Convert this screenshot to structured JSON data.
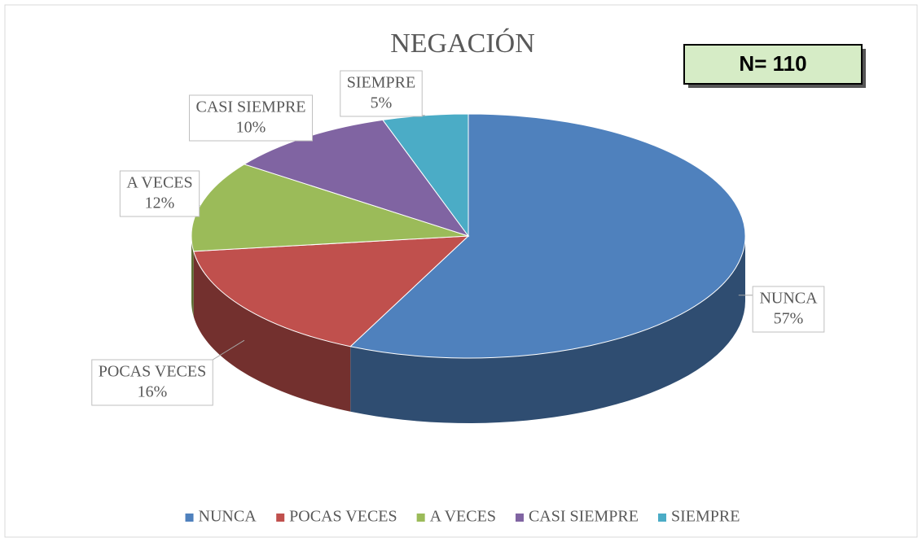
{
  "chart_data": {
    "type": "pie",
    "title": "NEGACIÓN",
    "annotation": "N= 110",
    "categories": [
      "NUNCA",
      "POCAS VECES",
      "A VECES",
      "CASI SIEMPRE",
      "SIEMPRE"
    ],
    "values": [
      57,
      16,
      12,
      10,
      5
    ],
    "value_labels": [
      "57%",
      "16%",
      "12%",
      "10%",
      "5%"
    ],
    "colors": [
      "#4f81bd",
      "#c0504d",
      "#9bbb59",
      "#8064a2",
      "#4bacc6"
    ],
    "legend": "bottom"
  }
}
